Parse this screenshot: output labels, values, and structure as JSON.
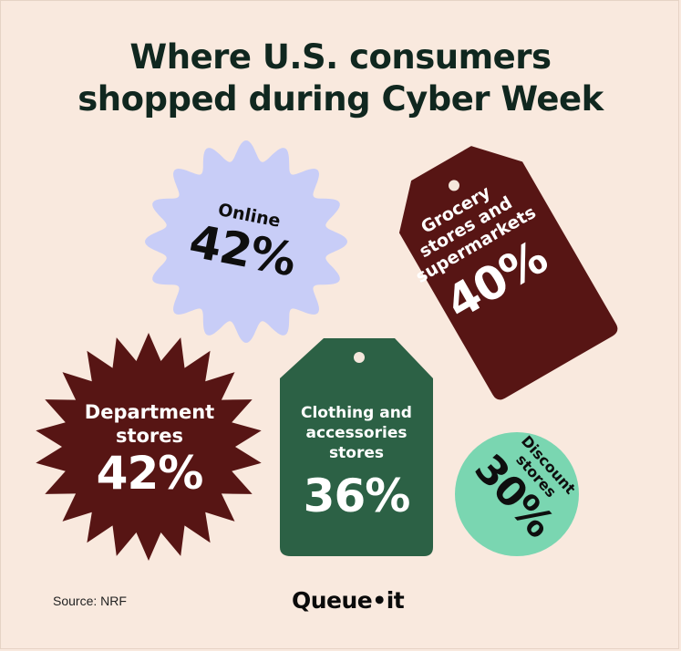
{
  "title_lines": [
    "Where U.S. consumers",
    "shopped during Cyber Week"
  ],
  "source": "Source: NRF",
  "brand": "Queue•it",
  "chart_data": {
    "type": "table",
    "title": "Where U.S. consumers shopped during Cyber Week",
    "unit": "%",
    "items": [
      {
        "name": "Online",
        "value": 42,
        "display": "42%",
        "color": "#c8cdf7",
        "text_color": "#0e0e0e"
      },
      {
        "name": "Grocery stores and supermarkets",
        "name_lines": [
          "Grocery",
          "stores and",
          "supermarkets"
        ],
        "value": 40,
        "display": "40%",
        "color": "#571514",
        "text_color": "#ffffff"
      },
      {
        "name": "Department stores",
        "name_lines": [
          "Department",
          "stores"
        ],
        "value": 42,
        "display": "42%",
        "color": "#571514",
        "text_color": "#ffffff"
      },
      {
        "name": "Clothing and accessories stores",
        "name_lines": [
          "Clothing and",
          "accessories",
          "stores"
        ],
        "value": 36,
        "display": "36%",
        "color": "#2c6145",
        "text_color": "#ffffff"
      },
      {
        "name": "Discount stores",
        "name_lines": [
          "Discount",
          "stores"
        ],
        "value": 30,
        "display": "30%",
        "color": "#7ad6b1",
        "text_color": "#0e0e0e"
      }
    ]
  }
}
